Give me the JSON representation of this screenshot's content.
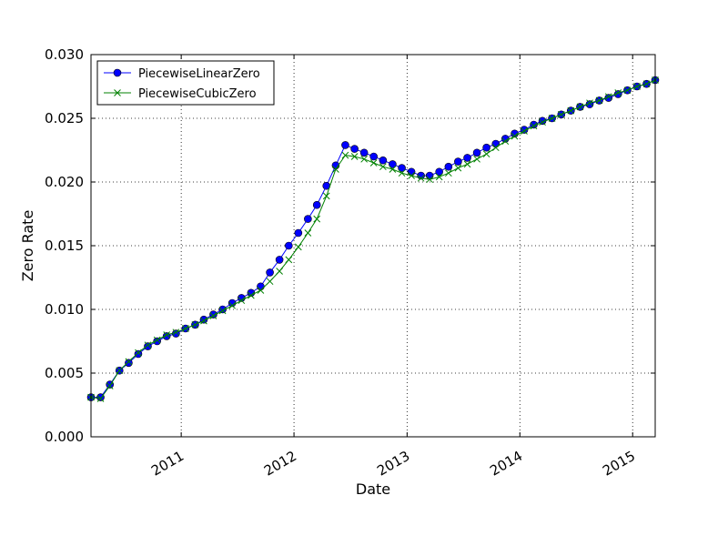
{
  "chart_data": {
    "type": "line",
    "title": "",
    "xlabel": "Date",
    "ylabel": "Zero Rate",
    "xlim": [
      "2010-03-15",
      "2015-03-15"
    ],
    "ylim": [
      0.0,
      0.03
    ],
    "grid": true,
    "legend_position": "top-left",
    "x_ticks": [
      {
        "label": "2011",
        "date": "2011-01-01"
      },
      {
        "label": "2012",
        "date": "2012-01-01"
      },
      {
        "label": "2013",
        "date": "2013-01-01"
      },
      {
        "label": "2014",
        "date": "2014-01-01"
      },
      {
        "label": "2015",
        "date": "2015-01-01"
      }
    ],
    "y_ticks": [
      "0.000",
      "0.005",
      "0.010",
      "0.015",
      "0.020",
      "0.025",
      "0.030"
    ],
    "x": [
      "2010-03-15",
      "2010-04-15",
      "2010-05-15",
      "2010-06-15",
      "2010-07-15",
      "2010-08-15",
      "2010-09-15",
      "2010-10-15",
      "2010-11-15",
      "2010-12-15",
      "2011-01-15",
      "2011-02-15",
      "2011-03-15",
      "2011-04-15",
      "2011-05-15",
      "2011-06-15",
      "2011-07-15",
      "2011-08-15",
      "2011-09-15",
      "2011-10-15",
      "2011-11-15",
      "2011-12-15",
      "2012-01-15",
      "2012-02-15",
      "2012-03-15",
      "2012-04-15",
      "2012-05-15",
      "2012-06-15",
      "2012-07-15",
      "2012-08-15",
      "2012-09-15",
      "2012-10-15",
      "2012-11-15",
      "2012-12-15",
      "2013-01-15",
      "2013-02-15",
      "2013-03-15",
      "2013-04-15",
      "2013-05-15",
      "2013-06-15",
      "2013-07-15",
      "2013-08-15",
      "2013-09-15",
      "2013-10-15",
      "2013-11-15",
      "2013-12-15",
      "2014-01-15",
      "2014-02-15",
      "2014-03-15",
      "2014-04-15",
      "2014-05-15",
      "2014-06-15",
      "2014-07-15",
      "2014-08-15",
      "2014-09-15",
      "2014-10-15",
      "2014-11-15",
      "2014-12-15",
      "2015-01-15",
      "2015-02-15",
      "2015-03-15"
    ],
    "series": [
      {
        "name": "PiecewiseLinearZero",
        "color": "#0000ff",
        "marker": "circle",
        "values": [
          0.0031,
          0.0031,
          0.0041,
          0.0052,
          0.0058,
          0.0065,
          0.0071,
          0.0075,
          0.0079,
          0.0081,
          0.0085,
          0.0088,
          0.0092,
          0.0096,
          0.01,
          0.0105,
          0.0109,
          0.0113,
          0.0118,
          0.0129,
          0.0139,
          0.015,
          0.016,
          0.0171,
          0.0182,
          0.0197,
          0.0213,
          0.0229,
          0.0226,
          0.0223,
          0.022,
          0.0217,
          0.0214,
          0.0211,
          0.0208,
          0.0205,
          0.0205,
          0.0208,
          0.0212,
          0.0216,
          0.0219,
          0.0223,
          0.0227,
          0.023,
          0.0234,
          0.0238,
          0.0241,
          0.0245,
          0.0248,
          0.025,
          0.0253,
          0.0256,
          0.0259,
          0.0261,
          0.0264,
          0.0266,
          0.0269,
          0.0272,
          0.0275,
          0.0277,
          0.028
        ]
      },
      {
        "name": "PiecewiseCubicZero",
        "color": "#008000",
        "marker": "x",
        "values": [
          0.0031,
          0.003,
          0.004,
          0.0052,
          0.0059,
          0.0066,
          0.0072,
          0.0076,
          0.008,
          0.0082,
          0.0085,
          0.0088,
          0.0091,
          0.0095,
          0.0099,
          0.0103,
          0.0107,
          0.0111,
          0.0115,
          0.0122,
          0.013,
          0.0139,
          0.0149,
          0.016,
          0.0171,
          0.0189,
          0.021,
          0.0221,
          0.022,
          0.0218,
          0.0215,
          0.0212,
          0.021,
          0.0207,
          0.0205,
          0.0203,
          0.0202,
          0.0204,
          0.0207,
          0.0211,
          0.0214,
          0.0218,
          0.0222,
          0.0227,
          0.0232,
          0.0236,
          0.024,
          0.0244,
          0.0247,
          0.025,
          0.0253,
          0.0256,
          0.0259,
          0.0262,
          0.0264,
          0.0267,
          0.027,
          0.0272,
          0.0275,
          0.0277,
          0.028
        ]
      }
    ]
  }
}
